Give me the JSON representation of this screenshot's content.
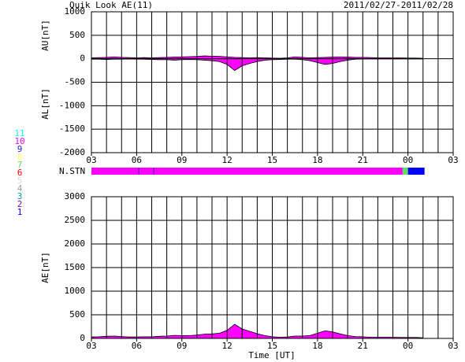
{
  "header": {
    "title": "Quik Look AE(11)",
    "date_range": "2011/02/27-2011/02/28",
    "xlabel": "Time [UT]"
  },
  "chart_data": [
    {
      "type": "area",
      "ylabels": [
        "AU[nT]",
        "AL[nT]"
      ],
      "xlim": [
        3,
        27
      ],
      "ylim": [
        -2000,
        1000
      ],
      "xticks": [
        {
          "value": 3,
          "label": "03"
        },
        {
          "value": 6,
          "label": "06"
        },
        {
          "value": 9,
          "label": "09"
        },
        12,
        15,
        18,
        21,
        {
          "value": 24,
          "label": "00"
        },
        {
          "value": 27,
          "label": "03"
        }
      ],
      "xgrid": [
        3,
        4,
        5,
        6,
        7,
        8,
        9,
        10,
        11,
        12,
        13,
        14,
        15,
        16,
        17,
        18,
        19,
        20,
        21,
        22,
        23,
        24,
        25,
        26,
        27
      ],
      "yticks": [
        1000,
        500,
        0,
        -500,
        -1000,
        -1500,
        -2000
      ],
      "x": [
        3,
        3.5,
        4,
        4.5,
        5,
        5.5,
        6,
        6.5,
        7,
        7.5,
        8,
        8.5,
        9,
        9.5,
        10,
        10.5,
        11,
        11.5,
        12,
        12.5,
        13,
        13.5,
        14,
        14.5,
        15,
        15.5,
        16,
        16.5,
        17,
        17.5,
        18,
        18.5,
        19,
        19.5,
        20,
        20.5,
        21,
        21.5,
        22,
        22.5,
        23,
        23.5,
        24,
        24.5,
        25
      ],
      "series": [
        {
          "color": "#ff00ff",
          "values": [
            20,
            25,
            30,
            40,
            30,
            25,
            20,
            25,
            20,
            25,
            30,
            35,
            40,
            45,
            50,
            60,
            55,
            50,
            40,
            30,
            25,
            20,
            25,
            20,
            15,
            10,
            20,
            40,
            30,
            20,
            25,
            30,
            35,
            40,
            35,
            30,
            30,
            25,
            20,
            20,
            20,
            20,
            15,
            15,
            10
          ]
        },
        {
          "color": "#ff00ff",
          "values": [
            -10,
            -10,
            -15,
            -10,
            -10,
            -5,
            -10,
            -10,
            -15,
            -20,
            -20,
            -30,
            -20,
            -15,
            -20,
            -30,
            -40,
            -60,
            -120,
            -250,
            -150,
            -100,
            -60,
            -30,
            -20,
            -15,
            -10,
            -10,
            -20,
            -40,
            -80,
            -120,
            -100,
            -60,
            -30,
            -10,
            -5,
            -5,
            -5,
            -5,
            -5,
            -5,
            -5,
            -5,
            -5
          ]
        }
      ]
    },
    {
      "type": "area",
      "ylabels": [
        "AE[nT]"
      ],
      "xlim": [
        3,
        27
      ],
      "ylim": [
        0,
        3000
      ],
      "xticks": [
        {
          "value": 3,
          "label": "03"
        },
        {
          "value": 6,
          "label": "06"
        },
        {
          "value": 9,
          "label": "09"
        },
        12,
        15,
        18,
        21,
        {
          "value": 24,
          "label": "00"
        },
        {
          "value": 27,
          "label": "03"
        }
      ],
      "xgrid": [
        3,
        4,
        5,
        6,
        7,
        8,
        9,
        10,
        11,
        12,
        13,
        14,
        15,
        16,
        17,
        18,
        19,
        20,
        21,
        22,
        23,
        24,
        25,
        26,
        27
      ],
      "yticks": [
        3000,
        2500,
        2000,
        1500,
        1000,
        500,
        0
      ],
      "x": [
        3,
        3.5,
        4,
        4.5,
        5,
        5.5,
        6,
        6.5,
        7,
        7.5,
        8,
        8.5,
        9,
        9.5,
        10,
        10.5,
        11,
        11.5,
        12,
        12.5,
        13,
        13.5,
        14,
        14.5,
        15,
        15.5,
        16,
        16.5,
        17,
        17.5,
        18,
        18.5,
        19,
        19.5,
        20,
        20.5,
        21,
        21.5,
        22,
        22.5,
        23,
        23.5,
        24,
        24.5,
        25
      ],
      "series": [
        {
          "color": "#ff00ff",
          "values": [
            30,
            35,
            45,
            50,
            40,
            30,
            30,
            35,
            35,
            45,
            50,
            65,
            60,
            60,
            70,
            90,
            95,
            110,
            170,
            300,
            200,
            150,
            100,
            60,
            35,
            25,
            30,
            50,
            50,
            60,
            110,
            160,
            140,
            95,
            60,
            40,
            35,
            25,
            25,
            25,
            25,
            20,
            20,
            20,
            15
          ]
        }
      ]
    }
  ],
  "stations": {
    "label": "N.STN",
    "segments": [
      {
        "start": 3,
        "end": 23.65,
        "count": 10
      },
      {
        "start": 6.1,
        "end": 6.18,
        "count": 2
      },
      {
        "start": 7.1,
        "end": 7.18,
        "count": 2
      },
      {
        "start": 23.65,
        "end": 24.0,
        "count": 7
      },
      {
        "start": 24.0,
        "end": 25.1,
        "count": 1
      }
    ],
    "levels": [
      {
        "value": 11,
        "color": "#00ffff"
      },
      {
        "value": 10,
        "color": "#ff00ff"
      },
      {
        "value": 9,
        "color": "#2020d0"
      },
      {
        "value": 8,
        "color": "#ffff60"
      },
      {
        "value": 7,
        "color": "#60e060"
      },
      {
        "value": 6,
        "color": "#ff0000"
      },
      {
        "value": 5,
        "color": "#d8d8d8"
      },
      {
        "value": 4,
        "color": "#a0a0a0"
      },
      {
        "value": 3,
        "color": "#00a0a0"
      },
      {
        "value": 2,
        "color": "#8000c0"
      },
      {
        "value": 1,
        "color": "#0000ff"
      }
    ]
  }
}
